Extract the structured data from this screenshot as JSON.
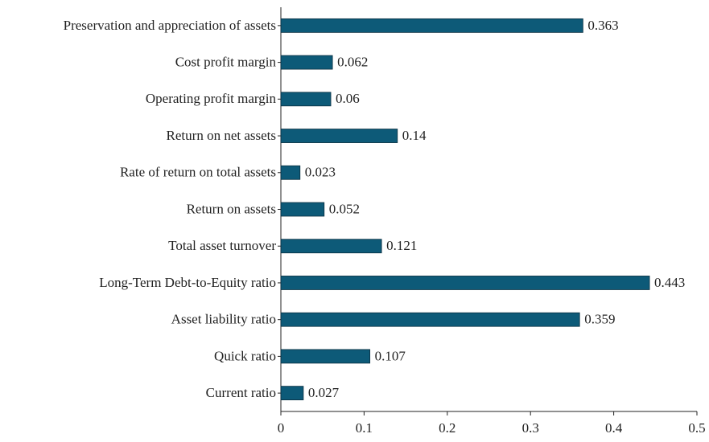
{
  "chart_data": {
    "type": "barh",
    "categories": [
      "Preservation and appreciation of assets",
      "Cost profit margin",
      "Operating profit margin",
      "Return on net assets",
      "Rate of return on total assets",
      "Return on assets",
      "Total asset turnover",
      "Long-Term Debt-to-Equity ratio",
      "Asset liability ratio",
      "Quick ratio",
      "Current ratio"
    ],
    "values": [
      0.363,
      0.062,
      0.06,
      0.14,
      0.023,
      0.052,
      0.121,
      0.443,
      0.359,
      0.107,
      0.027
    ],
    "color": "#0d5a78",
    "xlim": [
      0,
      0.5
    ],
    "xticks": [
      0,
      0.1,
      0.2,
      0.3,
      0.4,
      0.5
    ],
    "grid": false
  }
}
